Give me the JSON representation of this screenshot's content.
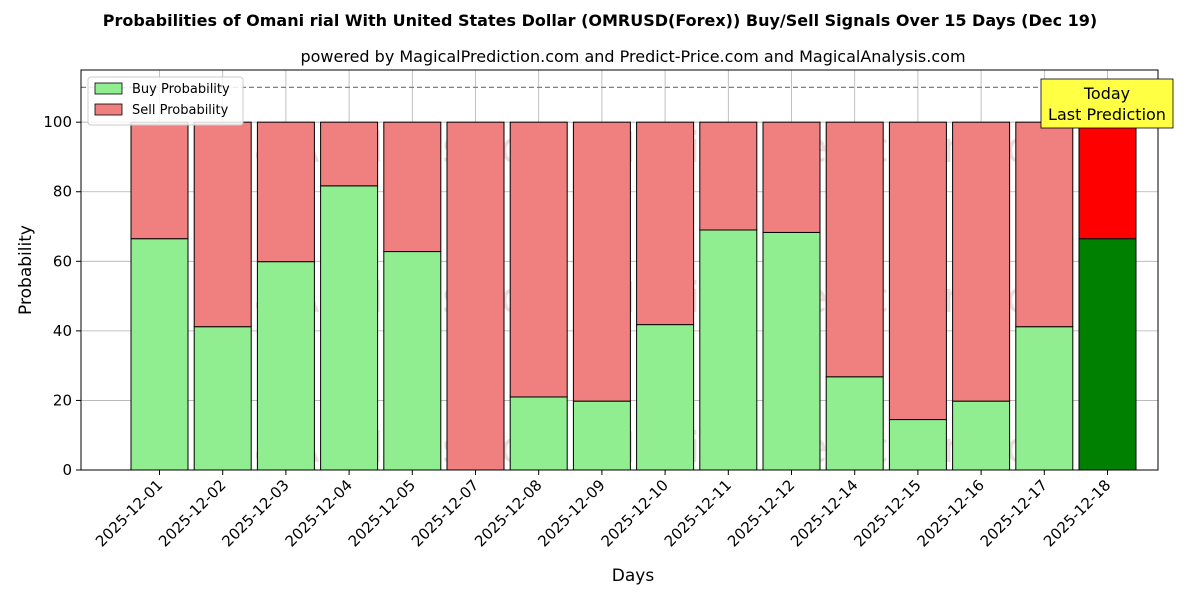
{
  "title": "Probabilities of Omani rial With United States Dollar (OMRUSD(Forex)) Buy/Sell Signals Over 15 Days (Dec 19)",
  "subtitle": "powered by MagicalPrediction.com and Predict-Price.com and MagicalAnalysis.com",
  "watermarks": [
    "MagicalAnalysis.com",
    "MagicalPrediction.com"
  ],
  "annotation": {
    "line1": "Today",
    "line2": "Last Prediction",
    "color": "#ffff44"
  },
  "colors": {
    "buy": "#90ee90",
    "sell": "#f08080",
    "buy_today": "#008000",
    "sell_today": "#ff0000",
    "grid": "#b0b0b0"
  },
  "chart_data": {
    "type": "bar",
    "stacked": true,
    "xlabel": "Days",
    "ylabel": "Probability",
    "ylim": [
      0,
      115
    ],
    "yticks": [
      0,
      20,
      40,
      60,
      80,
      100
    ],
    "reference_line": 110,
    "grid": true,
    "legend_position": "top-left",
    "categories": [
      "2025-12-01",
      "2025-12-02",
      "2025-12-03",
      "2025-12-04",
      "2025-12-05",
      "2025-12-07",
      "2025-12-08",
      "2025-12-09",
      "2025-12-10",
      "2025-12-11",
      "2025-12-12",
      "2025-12-14",
      "2025-12-15",
      "2025-12-16",
      "2025-12-17",
      "2025-12-18"
    ],
    "series": [
      {
        "name": "Buy Probability",
        "values": [
          66.5,
          41.2,
          59.9,
          81.7,
          62.8,
          0,
          21.0,
          19.8,
          41.8,
          69.0,
          68.3,
          26.8,
          14.5,
          19.8,
          41.2,
          66.5
        ]
      },
      {
        "name": "Sell Probability",
        "values": [
          33.5,
          58.8,
          40.1,
          18.3,
          37.2,
          100,
          79.0,
          80.2,
          58.2,
          31.0,
          31.7,
          73.2,
          85.5,
          80.2,
          58.8,
          33.5
        ]
      }
    ]
  }
}
